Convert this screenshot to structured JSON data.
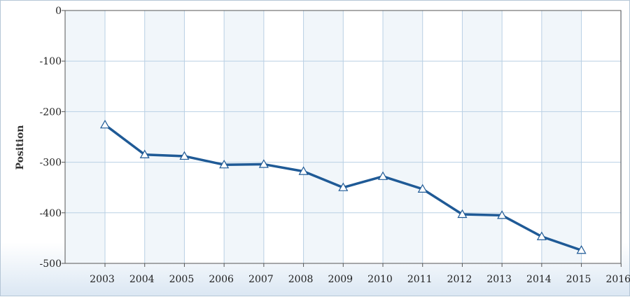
{
  "chart_data": {
    "type": "line",
    "title": "",
    "xlabel": "",
    "ylabel": "Position",
    "categories": [
      "2003",
      "2004",
      "2005",
      "2006",
      "2007",
      "2008",
      "2009",
      "2010",
      "2011",
      "2012",
      "2013",
      "2014",
      "2015",
      "2016"
    ],
    "series": [
      {
        "values": [
          -226,
          -285,
          -288,
          -305,
          -304,
          -318,
          -350,
          -328,
          -353,
          -403,
          -405,
          -447,
          -474,
          null
        ],
        "color": "#1f5a96",
        "marker": "triangle-open"
      }
    ],
    "ylim": [
      -500,
      0
    ],
    "yticks": [
      0,
      -100,
      -200,
      -300,
      -400,
      -500
    ],
    "ytick_labels": [
      "0",
      "-100",
      "-200",
      "-300",
      "-400",
      "-500"
    ],
    "grid": true,
    "band_color": "#f1f6fa",
    "grid_color": "#b9d0e4"
  }
}
